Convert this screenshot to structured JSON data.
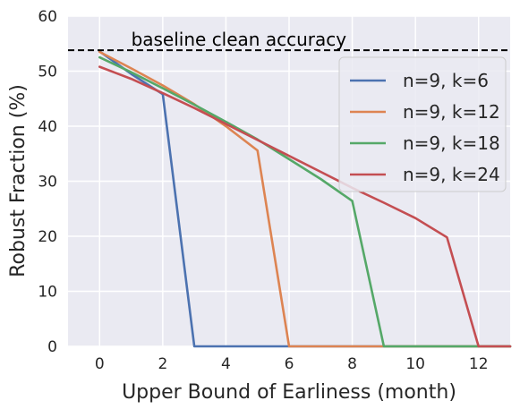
{
  "chart_data": {
    "type": "line",
    "xlabel": "Upper Bound of Earliness (month)",
    "ylabel": "Robust Fraction (%)",
    "xlim": [
      -1,
      13
    ],
    "ylim": [
      0,
      60
    ],
    "xticks": [
      0,
      2,
      4,
      6,
      8,
      10,
      12
    ],
    "yticks": [
      0,
      10,
      20,
      30,
      40,
      50,
      60
    ],
    "grid": true,
    "legend_position": "top-right",
    "baseline": {
      "label": "baseline clean accuracy",
      "y": 53.8
    },
    "series": [
      {
        "name": "n=9, k=6",
        "color": "#4c72b0",
        "x": [
          0,
          1,
          2,
          3,
          4,
          5,
          6,
          7,
          8,
          9,
          10,
          11,
          12,
          13
        ],
        "values": [
          53.6,
          49.5,
          45.8,
          0,
          0,
          0,
          0,
          0,
          0,
          0,
          0,
          0,
          0,
          0
        ]
      },
      {
        "name": "n=9, k=12",
        "color": "#dd8452",
        "x": [
          0,
          1,
          2,
          3,
          4,
          5,
          6,
          7,
          8,
          9,
          10,
          11,
          12,
          13
        ],
        "values": [
          53.5,
          50.5,
          47.4,
          44.0,
          40.0,
          35.6,
          0,
          0,
          0,
          0,
          0,
          0,
          0,
          0
        ]
      },
      {
        "name": "n=9, k=18",
        "color": "#55a868",
        "x": [
          0,
          1,
          2,
          3,
          4,
          5,
          6,
          7,
          8,
          9,
          10,
          11,
          12,
          13
        ],
        "values": [
          52.5,
          49.8,
          46.9,
          43.9,
          40.8,
          37.6,
          34.0,
          30.4,
          26.4,
          0,
          0,
          0,
          0,
          0
        ]
      },
      {
        "name": "n=9, k=24",
        "color": "#c44e52",
        "x": [
          0,
          1,
          2,
          3,
          4,
          5,
          6,
          7,
          8,
          9,
          10,
          11,
          12,
          13
        ],
        "values": [
          50.8,
          48.6,
          46.0,
          43.3,
          40.4,
          37.5,
          34.6,
          31.7,
          28.8,
          26.1,
          23.3,
          19.8,
          0,
          0
        ]
      }
    ]
  }
}
